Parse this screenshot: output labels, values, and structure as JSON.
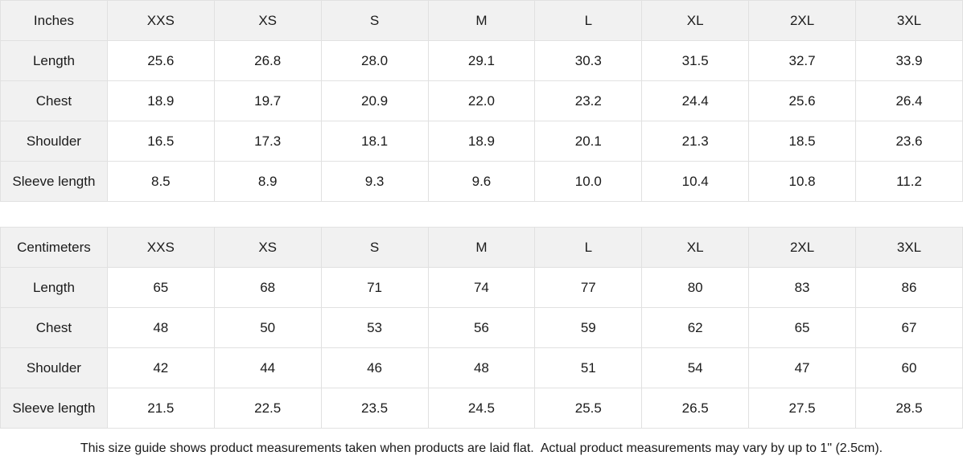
{
  "colors": {
    "header_cell_bg": "#f1f1f1",
    "cell_border": "#e1e1e1",
    "text": "#1b1b1b",
    "page_bg": "#ffffff"
  },
  "tables": [
    {
      "unit": "Inches",
      "sizes": [
        "XXS",
        "XS",
        "S",
        "M",
        "L",
        "XL",
        "2XL",
        "3XL"
      ],
      "rows": [
        {
          "label": "Length",
          "values": [
            "25.6",
            "26.8",
            "28.0",
            "29.1",
            "30.3",
            "31.5",
            "32.7",
            "33.9"
          ]
        },
        {
          "label": "Chest",
          "values": [
            "18.9",
            "19.7",
            "20.9",
            "22.0",
            "23.2",
            "24.4",
            "25.6",
            "26.4"
          ]
        },
        {
          "label": "Shoulder",
          "values": [
            "16.5",
            "17.3",
            "18.1",
            "18.9",
            "20.1",
            "21.3",
            "18.5",
            "23.6"
          ]
        },
        {
          "label": "Sleeve length",
          "values": [
            "8.5",
            "8.9",
            "9.3",
            "9.6",
            "10.0",
            "10.4",
            "10.8",
            "11.2"
          ]
        }
      ]
    },
    {
      "unit": "Centimeters",
      "sizes": [
        "XXS",
        "XS",
        "S",
        "M",
        "L",
        "XL",
        "2XL",
        "3XL"
      ],
      "rows": [
        {
          "label": "Length",
          "values": [
            "65",
            "68",
            "71",
            "74",
            "77",
            "80",
            "83",
            "86"
          ]
        },
        {
          "label": "Chest",
          "values": [
            "48",
            "50",
            "53",
            "56",
            "59",
            "62",
            "65",
            "67"
          ]
        },
        {
          "label": "Shoulder",
          "values": [
            "42",
            "44",
            "46",
            "48",
            "51",
            "54",
            "47",
            "60"
          ]
        },
        {
          "label": "Sleeve length",
          "values": [
            "21.5",
            "22.5",
            "23.5",
            "24.5",
            "25.5",
            "26.5",
            "27.5",
            "28.5"
          ]
        }
      ]
    }
  ],
  "footer": {
    "note": "This size guide shows product measurements taken when products are laid flat.  Actual product measurements may vary by up to 1\" (2.5cm)."
  }
}
